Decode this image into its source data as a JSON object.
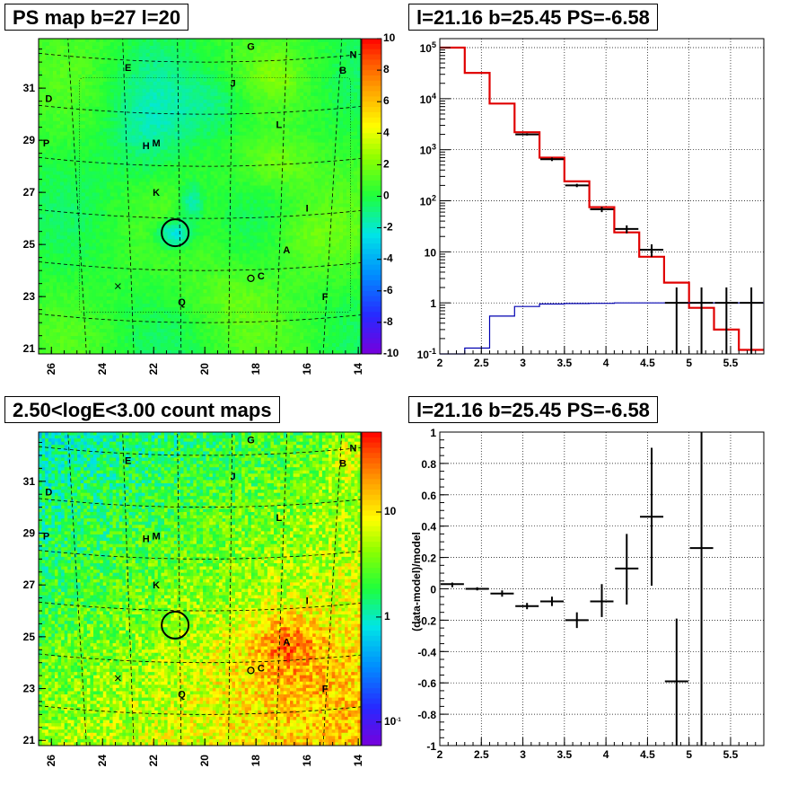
{
  "titles": {
    "map_top": "PS map b=27 l=20",
    "map_bottom": "2.50<logE<3.00 count maps",
    "spectrum": "l=21.16 b=25.45 PS=-6.58",
    "residual": "l=21.16 b=25.45 PS=-6.58"
  },
  "chart_data": [
    {
      "type": "heatmap",
      "title": "PS map b=27 l=20",
      "x_ticks": [
        "26",
        "24",
        "22",
        "20",
        "18",
        "16",
        "14"
      ],
      "y_ticks": [
        "21",
        "23",
        "25",
        "27",
        "29",
        "31"
      ],
      "xlim": [
        26.5,
        13.9
      ],
      "ylim": [
        20.8,
        32.9
      ],
      "colorbar_ticks": [
        "10",
        "8",
        "6",
        "4",
        "2",
        "0",
        "-2",
        "-4",
        "-6",
        "-8",
        "-10"
      ],
      "colorbar_range": [
        -10,
        10
      ],
      "source_labels": [
        {
          "name": "G",
          "l": 18.2,
          "b": 32.6
        },
        {
          "name": "N",
          "l": 14.2,
          "b": 32.3
        },
        {
          "name": "E",
          "l": 23.0,
          "b": 31.8
        },
        {
          "name": "B",
          "l": 14.6,
          "b": 31.7
        },
        {
          "name": "J",
          "l": 18.9,
          "b": 31.2
        },
        {
          "name": "D",
          "l": 26.1,
          "b": 30.6
        },
        {
          "name": "L",
          "l": 17.1,
          "b": 29.6
        },
        {
          "name": "P",
          "l": 26.2,
          "b": 28.9
        },
        {
          "name": "H",
          "l": 22.3,
          "b": 28.8
        },
        {
          "name": "M",
          "l": 21.9,
          "b": 28.9
        },
        {
          "name": "K",
          "l": 21.9,
          "b": 27.0
        },
        {
          "name": "I",
          "l": 16.0,
          "b": 26.4
        },
        {
          "name": "A",
          "l": 16.8,
          "b": 24.8
        },
        {
          "name": "C",
          "l": 17.8,
          "b": 23.8
        },
        {
          "name": "Q",
          "l": 20.9,
          "b": 22.8
        },
        {
          "name": "F",
          "l": 15.3,
          "b": 23.0
        }
      ],
      "circle": {
        "l": 21.16,
        "b": 25.45
      },
      "small_circle": {
        "l": 18.2,
        "b": 23.7
      },
      "cross": {
        "l": 23.4,
        "b": 23.4
      }
    },
    {
      "type": "line",
      "title": "l=21.16 b=25.45 PS=-6.58",
      "y_scale": "log",
      "xlim": [
        2,
        5.9
      ],
      "ylim": [
        0.1,
        150000
      ],
      "x_ticks": [
        "2",
        "2.5",
        "3",
        "3.5",
        "4",
        "4.5",
        "5",
        "5.5"
      ],
      "y_ticks": [
        "10^-1",
        "1",
        "10",
        "10^2",
        "10^3",
        "10^4",
        "10^5"
      ],
      "bin_edges": [
        2.0,
        2.3,
        2.6,
        2.9,
        3.2,
        3.5,
        3.8,
        4.1,
        4.4,
        4.7,
        5.0,
        5.3,
        5.6,
        5.9
      ],
      "series": [
        {
          "color": "#e00000",
          "values": [
            100000,
            32000,
            8000,
            2200,
            700,
            240,
            75,
            24,
            8,
            2.5,
            0.8,
            0.3,
            0.12
          ]
        },
        {
          "color": "#0000b0",
          "values": [
            0.1,
            0.13,
            0.55,
            0.85,
            0.95,
            0.97,
            0.98,
            1.0,
            1.0,
            1.0,
            1.0,
            1.0,
            1.0
          ]
        }
      ],
      "points": [
        {
          "x": 3.05,
          "y": 2000,
          "lo": 1900,
          "hi": 2100
        },
        {
          "x": 3.35,
          "y": 650,
          "lo": 600,
          "hi": 700
        },
        {
          "x": 3.65,
          "y": 200,
          "lo": 185,
          "hi": 215
        },
        {
          "x": 3.95,
          "y": 68,
          "lo": 60,
          "hi": 76
        },
        {
          "x": 4.25,
          "y": 28,
          "lo": 23,
          "hi": 33
        },
        {
          "x": 4.55,
          "y": 11,
          "lo": 8,
          "hi": 14
        },
        {
          "x": 4.85,
          "y": 1,
          "lo": 0.1,
          "hi": 2
        },
        {
          "x": 5.15,
          "y": 1,
          "lo": 0.1,
          "hi": 2
        },
        {
          "x": 5.45,
          "y": 1,
          "lo": 0.1,
          "hi": 2
        },
        {
          "x": 5.75,
          "y": 1,
          "lo": 0.1,
          "hi": 2
        }
      ]
    },
    {
      "type": "heatmap",
      "title": "2.50<logE<3.00 count maps",
      "x_ticks": [
        "26",
        "24",
        "22",
        "20",
        "18",
        "16",
        "14"
      ],
      "y_ticks": [
        "21",
        "23",
        "25",
        "27",
        "29",
        "31"
      ],
      "xlim": [
        26.5,
        13.9
      ],
      "ylim": [
        20.8,
        32.9
      ],
      "colorbar_ticks": [
        "10",
        "1",
        "10^-1"
      ],
      "colorbar_scale": "log"
    },
    {
      "type": "scatter",
      "title": "l=21.16 b=25.45 PS=-6.58",
      "ylabel": "(data-model)/model",
      "xlim": [
        2,
        5.9
      ],
      "ylim": [
        -1,
        1
      ],
      "x_ticks": [
        "2",
        "2.5",
        "3",
        "3.5",
        "4",
        "4.5",
        "5",
        "5.5"
      ],
      "y_ticks": [
        "1",
        "0.8",
        "0.6",
        "0.4",
        "0.2",
        "0",
        "-0.2",
        "-0.4",
        "-0.6",
        "-0.8",
        "-1"
      ],
      "points": [
        {
          "x": 2.15,
          "y": 0.03,
          "lo": 0.01,
          "hi": 0.04
        },
        {
          "x": 2.45,
          "y": 0.0,
          "lo": -0.01,
          "hi": 0.01
        },
        {
          "x": 2.75,
          "y": -0.03,
          "lo": -0.05,
          "hi": -0.01
        },
        {
          "x": 3.05,
          "y": -0.11,
          "lo": -0.13,
          "hi": -0.09
        },
        {
          "x": 3.35,
          "y": -0.08,
          "lo": -0.11,
          "hi": -0.05
        },
        {
          "x": 3.65,
          "y": -0.2,
          "lo": -0.25,
          "hi": -0.15
        },
        {
          "x": 3.95,
          "y": -0.08,
          "lo": -0.18,
          "hi": 0.03
        },
        {
          "x": 4.25,
          "y": 0.13,
          "lo": -0.1,
          "hi": 0.35
        },
        {
          "x": 4.55,
          "y": 0.46,
          "lo": 0.02,
          "hi": 0.9
        },
        {
          "x": 4.85,
          "y": -0.59,
          "lo": -1.0,
          "hi": -0.19
        },
        {
          "x": 5.15,
          "y": 0.26,
          "lo": -1.0,
          "hi": 1.0
        }
      ]
    }
  ]
}
